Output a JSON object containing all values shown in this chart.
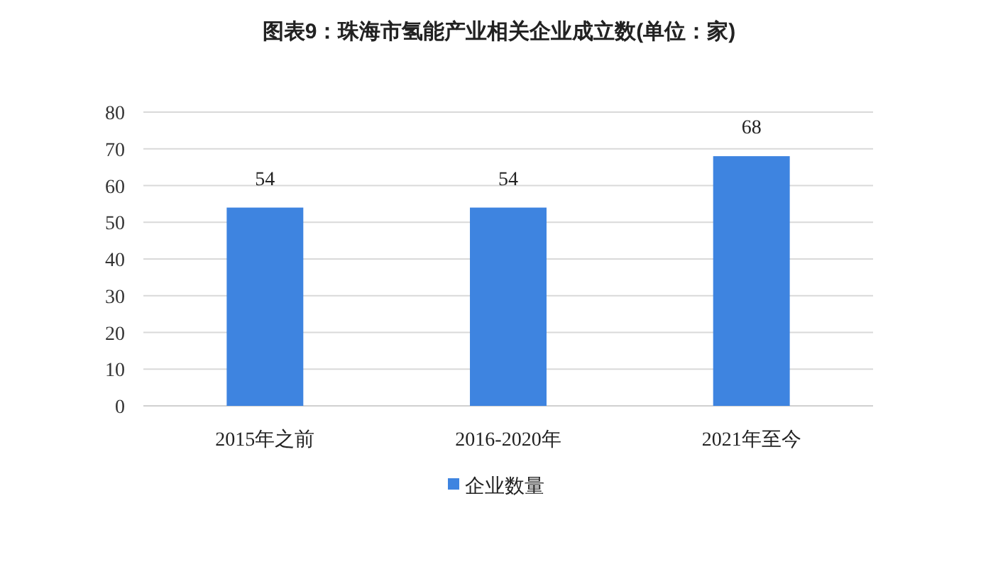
{
  "chart_data": {
    "type": "bar",
    "title": "图表9：珠海市氢能产业相关企业成立数(单位：家)",
    "categories": [
      "2015年之前",
      "2016-2020年",
      "2021年至今"
    ],
    "series": [
      {
        "name": "企业数量",
        "color": "#3e84e0",
        "values": [
          54,
          54,
          68
        ]
      }
    ],
    "ylim": [
      0,
      80
    ],
    "yticks": [
      0,
      10,
      20,
      30,
      40,
      50,
      60,
      70,
      80
    ],
    "grid": "y",
    "legend": "bottom",
    "data_labels": true
  }
}
